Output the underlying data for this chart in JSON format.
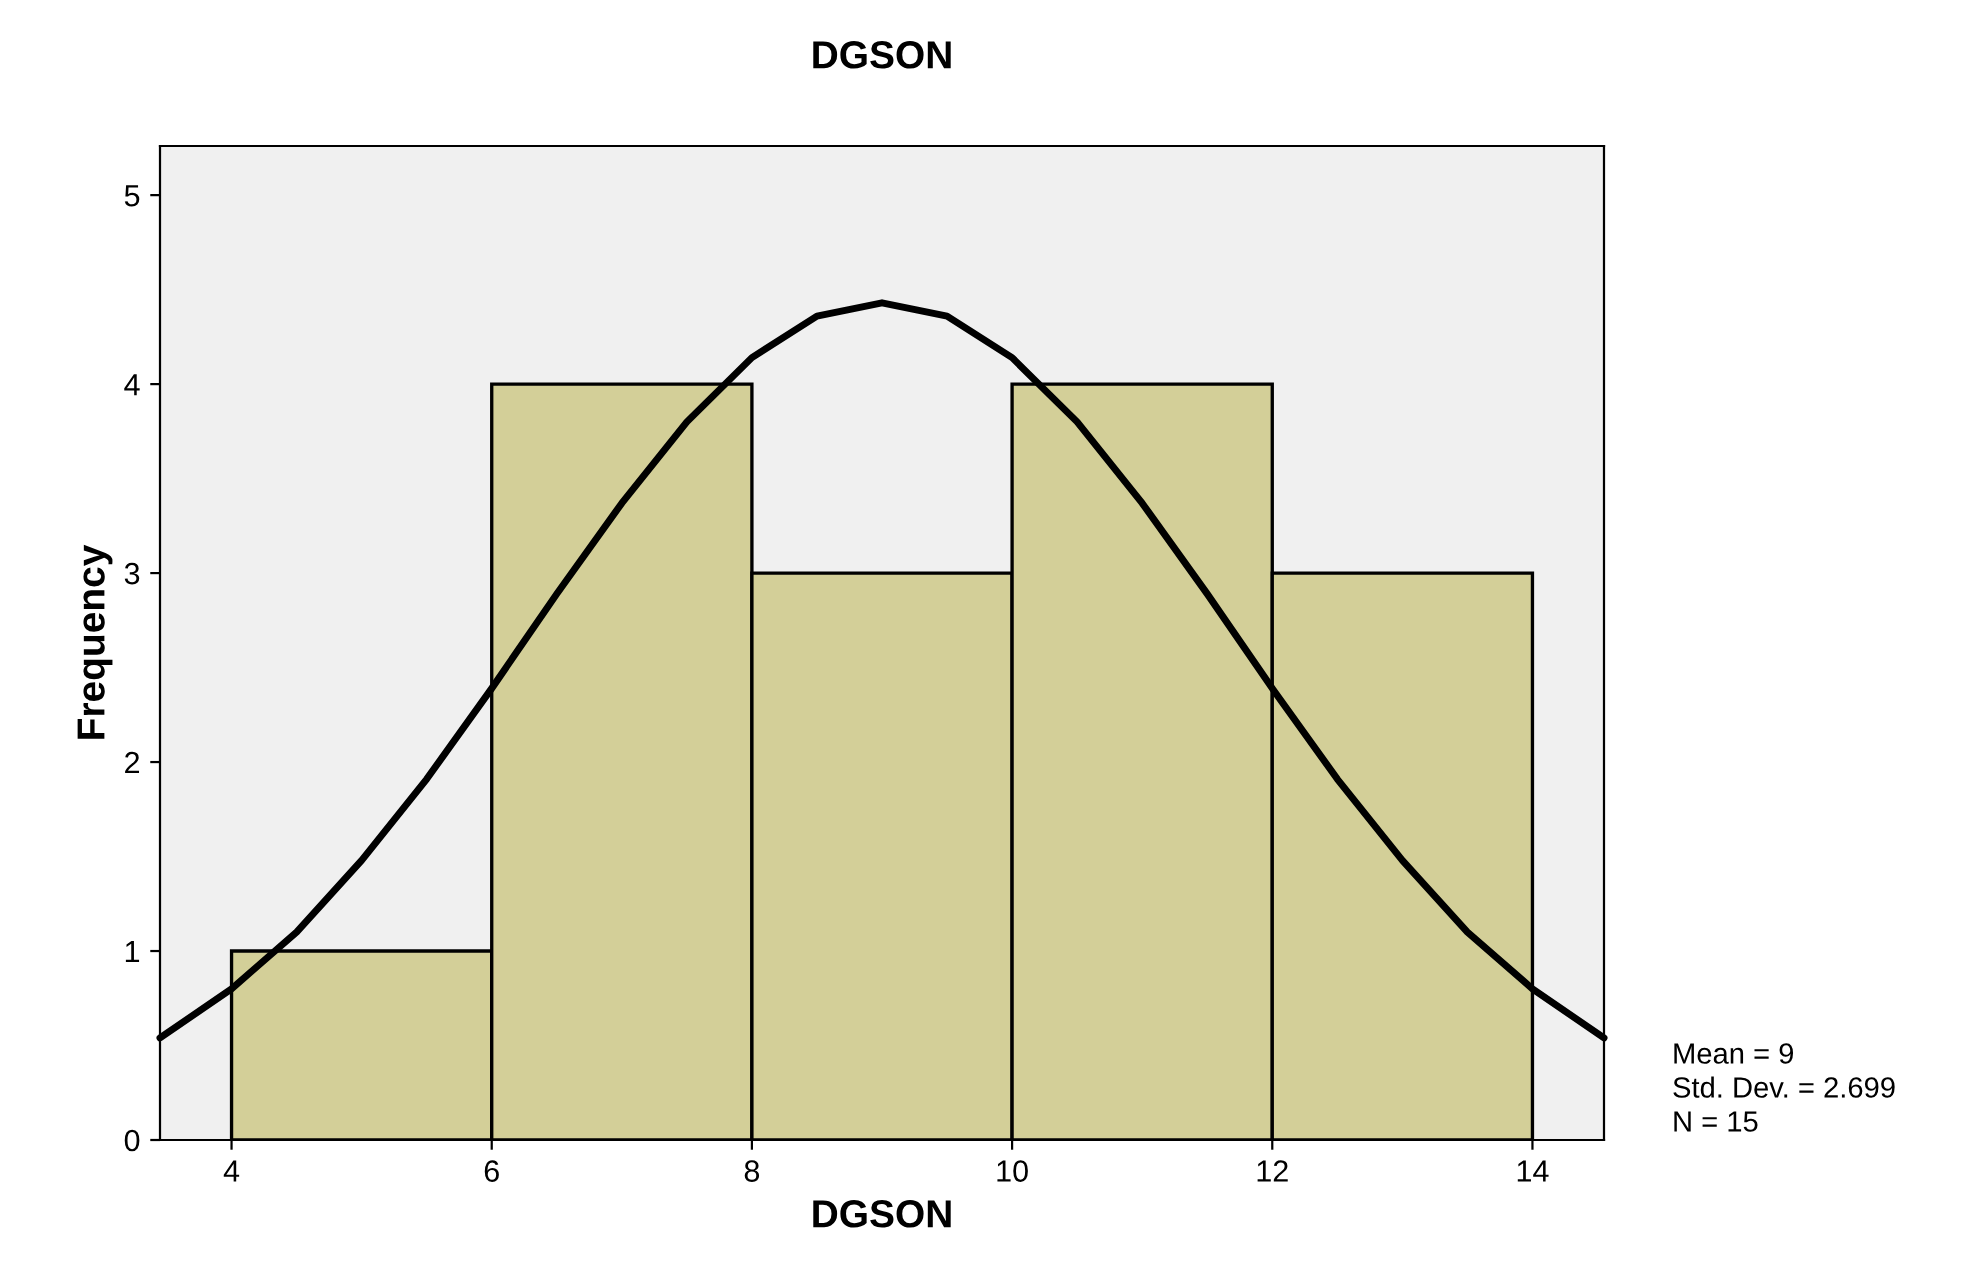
{
  "chart_data": {
    "type": "histogram",
    "title": "DGSON",
    "xlabel": "DGSON",
    "ylabel": "Frequency",
    "series": [
      {
        "bins": [
          4,
          6,
          8,
          10,
          12,
          14
        ],
        "values": [
          1,
          4,
          3,
          4,
          3
        ],
        "color": "#d3cf98"
      },
      {
        "type": "line",
        "color": "#000000",
        "x": [
          3.45,
          4,
          4.5,
          5,
          5.5,
          6,
          6.5,
          7,
          7.5,
          8,
          8.5,
          9,
          9.5,
          10,
          10.5,
          11,
          11.5,
          12,
          12.5,
          13,
          13.5,
          14,
          14.55
        ],
        "values": [
          0.54,
          0.8,
          1.1,
          1.48,
          1.91,
          2.39,
          2.89,
          3.37,
          3.8,
          4.14,
          4.36,
          4.43,
          4.36,
          4.14,
          3.8,
          3.37,
          2.89,
          2.39,
          1.91,
          1.48,
          1.1,
          0.8,
          0.54
        ]
      }
    ],
    "xlim": [
      3.45,
      14.55
    ],
    "xticks": [
      4,
      6,
      8,
      10,
      12,
      14
    ],
    "ylim": [
      0,
      5.26
    ],
    "yticks": [
      0,
      1,
      2,
      3,
      4,
      5
    ],
    "grid": false,
    "legend": false,
    "annotations": [
      "Mean = 9",
      "Std. Dev. = 2.699",
      "N = 15"
    ]
  }
}
